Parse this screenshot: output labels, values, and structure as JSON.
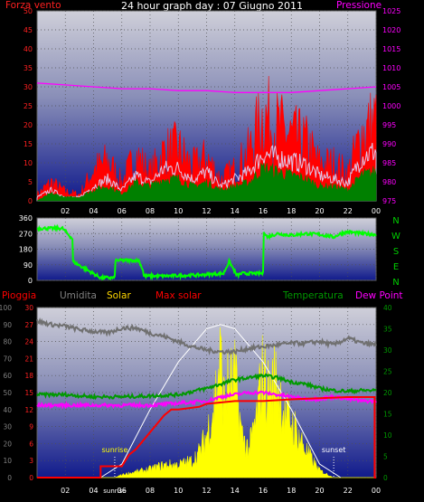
{
  "chart_data": [
    {
      "type": "line",
      "title": "24 hour graph day : 07 Giugno 2011",
      "left_axis_label": "Forza vento",
      "right_axis_label": "Pressione",
      "left_ticks": [
        "0",
        "5",
        "10",
        "15",
        "20",
        "25",
        "30",
        "35",
        "40",
        "45",
        "50"
      ],
      "right_ticks": [
        "975",
        "980",
        "985",
        "990",
        "995",
        "1000",
        "1005",
        "1010",
        "1015",
        "1020",
        "1025"
      ],
      "x_ticks": [
        "02",
        "04",
        "06",
        "08",
        "10",
        "12",
        "14",
        "16",
        "18",
        "20",
        "22",
        "00"
      ],
      "ylim_left": [
        0,
        50
      ],
      "ylim_right": [
        975,
        1025
      ],
      "series": [
        {
          "name": "Forza vento",
          "color": "#ff0000",
          "x": [
            0,
            1,
            2,
            3,
            4,
            5,
            6,
            7,
            8,
            9,
            10,
            11,
            12,
            13,
            14,
            15,
            16,
            17,
            18,
            19,
            20,
            21,
            22,
            23,
            24
          ],
          "values": [
            2,
            6,
            3,
            2,
            10,
            13,
            6,
            15,
            9,
            16,
            17,
            11,
            14,
            7,
            10,
            16,
            28,
            24,
            21,
            19,
            12,
            12,
            9,
            22,
            26
          ]
        },
        {
          "name": "Pressione",
          "color": "#ff00ff",
          "x": [
            0,
            2,
            4,
            6,
            8,
            10,
            12,
            14,
            16,
            18,
            20,
            22,
            24
          ],
          "values": [
            1006,
            1005.5,
            1005,
            1004.5,
            1004.5,
            1004,
            1004,
            1003.5,
            1003.5,
            1003.5,
            1004,
            1004.5,
            1005
          ]
        },
        {
          "color": "#d9d9ff",
          "x": [
            0,
            1,
            2,
            3,
            4,
            5,
            6,
            7,
            8,
            9,
            10,
            11,
            12,
            13,
            14,
            15,
            16,
            17,
            18,
            19,
            20,
            21,
            22,
            23,
            24
          ],
          "values": [
            1,
            3,
            1,
            1,
            4,
            6,
            3,
            7,
            5,
            9,
            9,
            6,
            8,
            4,
            6,
            8,
            13,
            12,
            11,
            10,
            7,
            6,
            5,
            12,
            14
          ]
        },
        {
          "color": "#008000",
          "x": [
            0,
            1,
            2,
            3,
            4,
            5,
            6,
            7,
            8,
            9,
            10,
            11,
            12,
            13,
            14,
            15,
            16,
            17,
            18,
            19,
            20,
            21,
            22,
            23,
            24
          ],
          "values": [
            0,
            2,
            1,
            1,
            3,
            4,
            2,
            5,
            4,
            6,
            6,
            4,
            5,
            3,
            4,
            5,
            9,
            8,
            7,
            6,
            4,
            4,
            3,
            7,
            8
          ]
        }
      ]
    },
    {
      "type": "line",
      "left_ticks": [
        "0",
        "90",
        "180",
        "270",
        "360"
      ],
      "right_labels": [
        "N",
        "W",
        "S",
        "E",
        "N"
      ],
      "ylim": [
        0,
        360
      ],
      "series": [
        {
          "color": "#00ff00",
          "x": [
            0,
            1.8,
            2.5,
            2.5,
            4.5,
            5.5,
            5.5,
            7.2,
            7.5,
            7.5,
            9,
            11,
            11.3,
            12.2,
            13.2,
            13.6,
            14,
            14,
            14.2,
            14.5,
            16,
            16,
            16.3,
            17,
            18,
            19,
            20,
            21,
            21.5,
            22,
            23,
            24
          ],
          "values": [
            300,
            300,
            240,
            110,
            15,
            15,
            115,
            115,
            60,
            25,
            25,
            30,
            30,
            35,
            40,
            110,
            50,
            40,
            30,
            40,
            40,
            290,
            250,
            270,
            260,
            270,
            265,
            250,
            270,
            280,
            270,
            265
          ]
        }
      ]
    },
    {
      "type": "line",
      "legend": [
        "Pioggia",
        "Umidita",
        "Solar",
        "Max solar",
        "Temperatura",
        "Dew Point"
      ],
      "legend_colors": [
        "#ff0000",
        "#808080",
        "#ffd700",
        "#ff0000",
        "#009900",
        "#ff00ff"
      ],
      "left_ticks_outer": [
        "0",
        "10",
        "20",
        "30",
        "40",
        "50",
        "60",
        "70",
        "80",
        "90",
        "100"
      ],
      "left_ticks_inner": [
        "0",
        "3",
        "6",
        "9",
        "12",
        "15",
        "18",
        "21",
        "24",
        "27",
        "30"
      ],
      "right_ticks": [
        "0",
        "5",
        "10",
        "15",
        "20",
        "25",
        "30",
        "35",
        "40"
      ],
      "x_ticks": [
        "02",
        "04",
        "sunrise",
        "06",
        "08",
        "10",
        "12",
        "14",
        "16",
        "18",
        "20",
        "22",
        "00"
      ],
      "annotations": [
        "sunrise",
        "sunset"
      ],
      "sunrise_x": 5.5,
      "sunset_x": 21,
      "series": [
        {
          "name": "Pioggia",
          "color": "#ff0000",
          "x": [
            0,
            4.5,
            4.5,
            6,
            6.5,
            7,
            9,
            9.5,
            10,
            11.5,
            12,
            14,
            16,
            18,
            20,
            22,
            23.9,
            23.9,
            24
          ],
          "values": [
            0,
            0,
            2,
            2,
            4,
            5,
            11,
            12,
            12,
            12.5,
            13,
            13.5,
            13.5,
            13.8,
            14,
            14.2,
            14.2,
            0,
            0
          ]
        },
        {
          "name": "Umidita",
          "color": "#808080",
          "x": [
            0,
            1,
            2,
            3,
            4,
            5,
            6,
            7,
            8,
            9,
            10,
            11,
            12,
            13,
            14,
            15,
            16,
            17,
            18,
            19,
            20,
            21,
            22,
            23,
            24
          ],
          "values": [
            92,
            90,
            89,
            87,
            86,
            85,
            88,
            88,
            85,
            83,
            80,
            77,
            75,
            74,
            74,
            76,
            77,
            78,
            79,
            79,
            80,
            78,
            82,
            79,
            78
          ]
        },
        {
          "name": "Max solar",
          "color": "#ffffff",
          "x": [
            4.5,
            6,
            8,
            10,
            12,
            13,
            14,
            16,
            18,
            20,
            21.5
          ],
          "values": [
            0,
            80,
            400,
            680,
            875,
            900,
            875,
            680,
            400,
            80,
            0
          ]
        },
        {
          "name": "Solar",
          "color": "#ffff00",
          "x": [
            0,
            5.5,
            6,
            7,
            8,
            9,
            10,
            11,
            11.5,
            12,
            12.5,
            13,
            13.2,
            13.5,
            14,
            14.5,
            15,
            15.5,
            16,
            16.3,
            16.6,
            17,
            17.5,
            18,
            18.5,
            19,
            19.5,
            20,
            21,
            24
          ],
          "values": [
            0,
            0,
            20,
            40,
            60,
            90,
            90,
            120,
            180,
            300,
            500,
            850,
            550,
            650,
            700,
            300,
            200,
            400,
            780,
            600,
            650,
            700,
            450,
            400,
            300,
            200,
            120,
            50,
            0,
            0
          ]
        },
        {
          "name": "Temperatura",
          "color": "#009900",
          "x": [
            0,
            2,
            4,
            6,
            8,
            10,
            12,
            13,
            14,
            15,
            16,
            17,
            18,
            19,
            20,
            21,
            22,
            23,
            24
          ],
          "values": [
            19.5,
            19.5,
            19,
            19,
            19.2,
            19.5,
            21,
            22,
            23,
            23.5,
            24,
            23.5,
            22.5,
            22,
            21,
            20.5,
            20.3,
            20.5,
            20.5
          ]
        },
        {
          "name": "Dew Point",
          "color": "#ff00ff",
          "x": [
            0,
            2,
            4,
            6,
            8,
            10,
            12,
            13,
            14,
            15,
            16,
            17,
            18,
            19,
            20,
            21,
            22,
            23,
            24
          ],
          "values": [
            17,
            17,
            17,
            17,
            17,
            17.5,
            18,
            19,
            19.5,
            20,
            20,
            19.5,
            19,
            18.5,
            18.5,
            19,
            18.5,
            18,
            18
          ]
        }
      ]
    }
  ]
}
